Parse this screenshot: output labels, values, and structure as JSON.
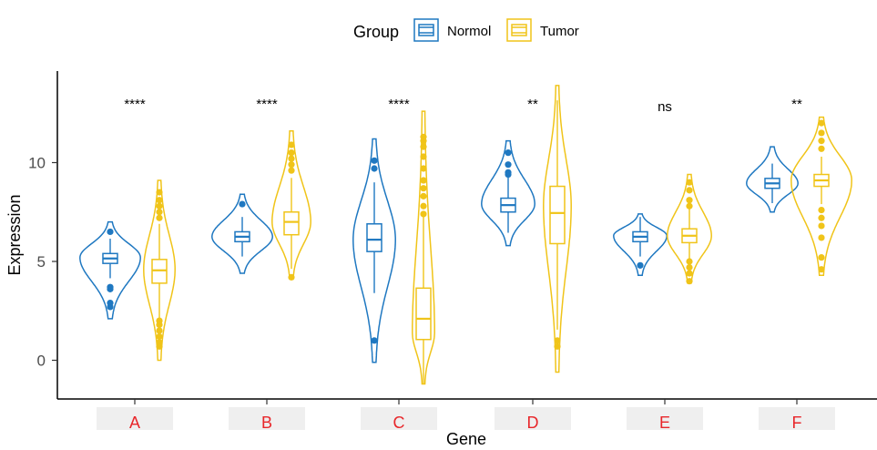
{
  "chart_data": {
    "type": "violin",
    "xlabel": "Gene",
    "ylabel": "Expression",
    "ylim": [
      -1.9,
      14
    ],
    "yticks": [
      0,
      5,
      10
    ],
    "grid": false,
    "legend": {
      "title": "Group",
      "placement": "top-center",
      "entries": [
        {
          "name": "Normol",
          "color": "#1f78c1"
        },
        {
          "name": "Tumor",
          "color": "#f0c419"
        }
      ]
    },
    "categories": [
      "A",
      "B",
      "C",
      "D",
      "E",
      "F"
    ],
    "significance": [
      "****",
      "****",
      "****",
      "**",
      "ns",
      "**"
    ],
    "series": [
      {
        "name": "Normol",
        "color": "#1f78c1",
        "groups": [
          {
            "min": 2.1,
            "max": 7.0,
            "q1": 4.9,
            "median": 5.15,
            "q3": 5.4,
            "density_peak": 5.2,
            "outliers": [
              2.7,
              2.9,
              3.6,
              3.7,
              6.5
            ]
          },
          {
            "min": 4.4,
            "max": 8.4,
            "q1": 6.0,
            "median": 6.25,
            "q3": 6.5,
            "density_peak": 6.25,
            "outliers": [
              7.9
            ]
          },
          {
            "min": -0.1,
            "max": 11.2,
            "q1": 5.5,
            "median": 6.1,
            "q3": 6.9,
            "density_peak": 6.1,
            "outliers": [
              1.0,
              9.7,
              10.1
            ]
          },
          {
            "min": 5.8,
            "max": 11.1,
            "q1": 7.5,
            "median": 7.85,
            "q3": 8.2,
            "density_peak": 7.9,
            "outliers": [
              9.4,
              9.5,
              9.9,
              10.5
            ]
          },
          {
            "min": 4.3,
            "max": 7.4,
            "q1": 6.0,
            "median": 6.25,
            "q3": 6.5,
            "density_peak": 6.3,
            "outliers": [
              4.8
            ]
          },
          {
            "min": 7.5,
            "max": 10.8,
            "q1": 8.7,
            "median": 8.95,
            "q3": 9.2,
            "density_peak": 8.95,
            "outliers": []
          }
        ]
      },
      {
        "name": "Tumor",
        "color": "#f0c419",
        "groups": [
          {
            "min": 0.0,
            "max": 9.1,
            "q1": 3.9,
            "median": 4.55,
            "q3": 5.1,
            "density_peak": 4.6,
            "outliers": [
              0.7,
              0.9,
              1.2,
              1.5,
              1.8,
              2.0,
              7.2,
              7.5,
              7.8,
              8.1,
              8.5
            ]
          },
          {
            "min": 4.1,
            "max": 11.6,
            "q1": 6.35,
            "median": 7.0,
            "q3": 7.5,
            "density_peak": 7.0,
            "outliers": [
              4.2,
              9.6,
              9.9,
              10.2,
              10.5,
              10.9
            ]
          },
          {
            "min": -1.2,
            "max": 12.6,
            "q1": 1.05,
            "median": 2.1,
            "q3": 3.65,
            "density_peak": 1.4,
            "outliers": [
              7.4,
              7.8,
              8.3,
              8.7,
              9.1,
              9.7,
              10.3,
              10.8,
              11.1,
              11.3
            ]
          },
          {
            "min": -0.6,
            "max": 13.9,
            "q1": 5.9,
            "median": 7.45,
            "q3": 8.8,
            "density_peak": 7.8,
            "outliers": [
              0.7,
              1.0
            ]
          },
          {
            "min": 3.9,
            "max": 9.4,
            "q1": 5.95,
            "median": 6.3,
            "q3": 6.65,
            "density_peak": 6.3,
            "outliers": [
              4.0,
              4.4,
              4.7,
              5.0,
              7.8,
              8.1,
              8.6,
              9.0
            ]
          },
          {
            "min": 4.3,
            "max": 12.3,
            "q1": 8.8,
            "median": 9.1,
            "q3": 9.4,
            "density_peak": 9.1,
            "outliers": [
              4.6,
              5.2,
              6.2,
              6.8,
              7.2,
              7.6,
              10.7,
              11.1,
              11.5,
              12.0
            ]
          }
        ]
      }
    ]
  }
}
